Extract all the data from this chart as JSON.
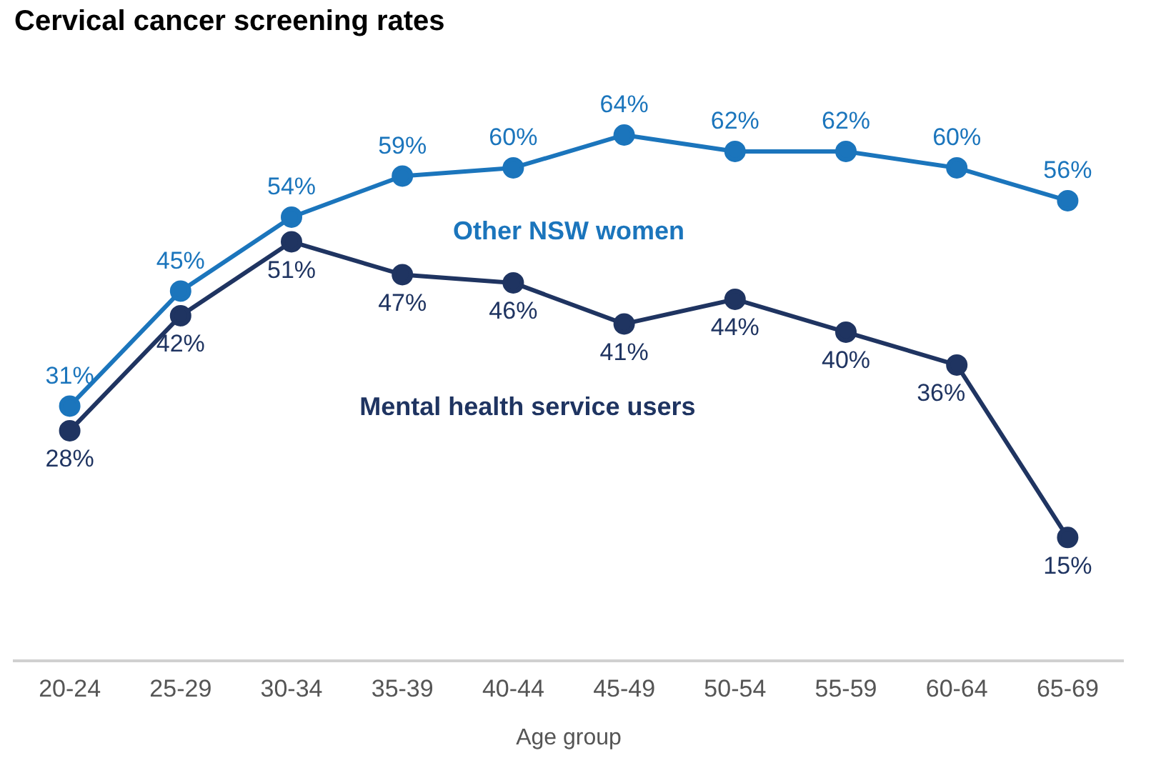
{
  "chart_data": {
    "type": "line",
    "title": "Cervical cancer screening rates",
    "xlabel": "Age group",
    "categories": [
      "20-24",
      "25-29",
      "30-34",
      "35-39",
      "40-44",
      "45-49",
      "50-54",
      "55-59",
      "60-64",
      "65-69"
    ],
    "marker": "circle",
    "legend": false,
    "grid": false,
    "series": [
      {
        "name": "Other NSW women",
        "color": "#1b75bc",
        "values": [
          31,
          45,
          54,
          59,
          60,
          64,
          62,
          62,
          60,
          56
        ],
        "value_labels": [
          "31%",
          "45%",
          "54%",
          "59%",
          "60%",
          "64%",
          "62%",
          "62%",
          "60%",
          "56%"
        ]
      },
      {
        "name": "Mental health service users",
        "color": "#1f3461",
        "values": [
          28,
          42,
          51,
          47,
          46,
          41,
          44,
          40,
          36,
          15
        ],
        "value_labels": [
          "28%",
          "42%",
          "51%",
          "47%",
          "46%",
          "41%",
          "44%",
          "40%",
          "36%",
          "15%"
        ]
      }
    ]
  }
}
